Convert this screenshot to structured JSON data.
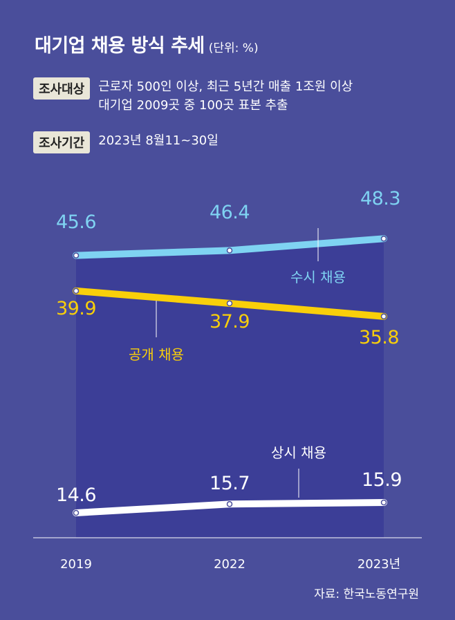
{
  "title": "대기업 채용 방식 추세",
  "unit": "(단위: %)",
  "info": [
    {
      "tag": "조사대상",
      "lines": [
        "근로자 500인 이상, 최근 5년간 매출 1조원 이상",
        "대기업 2009곳 중 100곳 표본 추출"
      ]
    },
    {
      "tag": "조사기간",
      "lines": [
        "2023년 8월11~30일"
      ]
    }
  ],
  "source": "자료: 한국노동연구원",
  "colors": {
    "background": "#4a4e9b",
    "plot_area": "#3c3e97",
    "suji": "#7fd3f2",
    "gonggae": "#f9cf0a",
    "sangsi": "#ffffff"
  },
  "chart_data": {
    "type": "line",
    "x": [
      "2019",
      "2022",
      "2023년"
    ],
    "series": [
      {
        "name": "수시 채용",
        "values": [
          45.6,
          46.4,
          48.3
        ],
        "color": "#7fd3f2",
        "value_labels": [
          "45.6",
          "46.4",
          "48.3"
        ]
      },
      {
        "name": "공개 채용",
        "values": [
          39.9,
          37.9,
          35.8
        ],
        "color": "#f9cf0a",
        "value_labels": [
          "39.9",
          "37.9",
          "35.8"
        ]
      },
      {
        "name": "상시 채용",
        "values": [
          14.6,
          15.7,
          15.9
        ],
        "color": "#ffffff",
        "value_labels": [
          "14.6",
          "15.7",
          "15.9"
        ]
      }
    ],
    "legend": "inline-callouts",
    "grid": false
  }
}
